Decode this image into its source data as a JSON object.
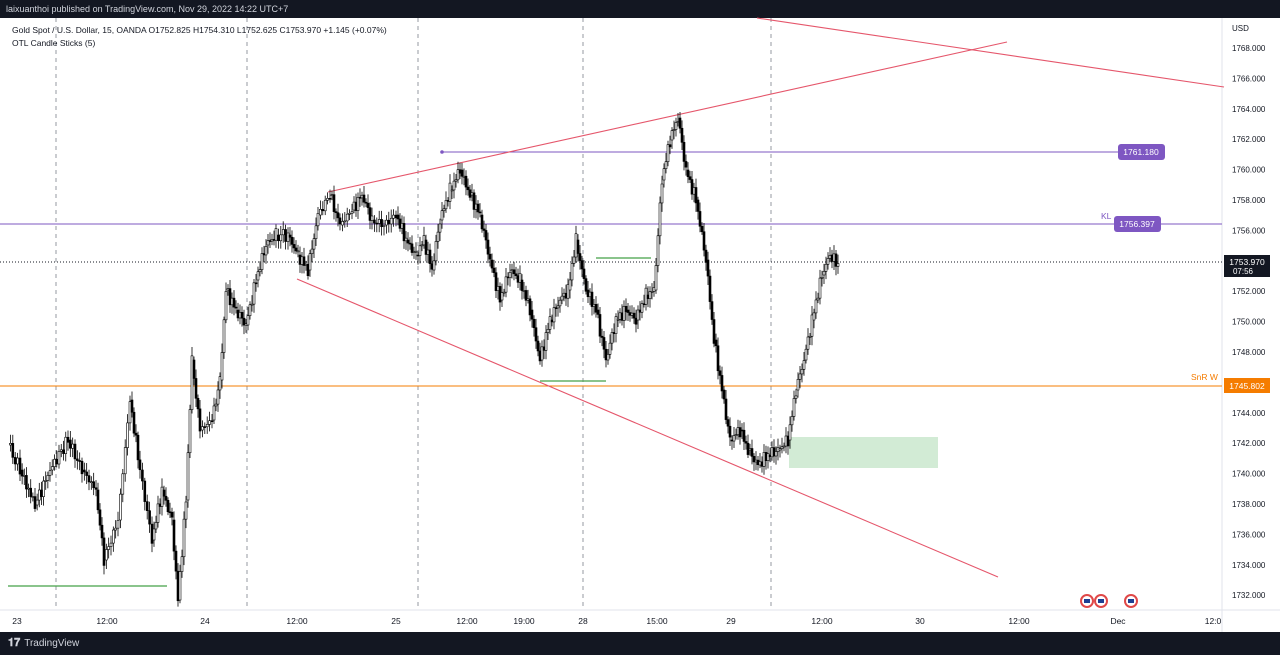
{
  "header": {
    "published_by": "laixuanthoi published on TradingView.com, Nov 29, 2022 14:22 UTC+7"
  },
  "legend": {
    "symbol_line": "Gold Spot / U.S. Dollar, 15, OANDA  O1752.825  H1754.310  L1752.625  C1753.970  +1.145 (+0.07%)",
    "indicator_line": "OTL Candle Sticks (5)"
  },
  "price_scale": {
    "currency": "USD",
    "ticks": [
      "1768.000",
      "1766.000",
      "1764.000",
      "1762.000",
      "1760.000",
      "1758.000",
      "1756.000",
      "1754.000",
      "1752.000",
      "1750.000",
      "1748.000",
      "1746.000",
      "1744.000",
      "1742.000",
      "1740.000",
      "1738.000",
      "1736.000",
      "1734.000",
      "1732.000"
    ]
  },
  "time_scale": {
    "labels": [
      "23",
      "12:00",
      "24",
      "12:00",
      "25",
      "12:00",
      "19:00",
      "28",
      "15:00",
      "29",
      "12:00",
      "30",
      "12:00",
      "Dec",
      "12:0"
    ]
  },
  "levels": {
    "resistance": {
      "value": "1761.180",
      "color": "#7e57c2"
    },
    "kl": {
      "label": "KL",
      "value": "1756.397",
      "color": "#7e57c2"
    },
    "snr": {
      "label": "SnR W",
      "value": "1745.802",
      "color": "#f57c00"
    },
    "last": {
      "value": "1753.970",
      "countdown": "07:56"
    }
  },
  "colors": {
    "trendline": "#e5566b",
    "zone": "#cde9d0",
    "green_line": "#43a047",
    "bull_candle": "#ffffff",
    "bear_candle": "#000000"
  },
  "footer": {
    "brand": "TradingView"
  },
  "icons": {
    "flags": [
      "us-flag-icon",
      "us-flag-icon",
      "us-flag-icon"
    ]
  }
}
